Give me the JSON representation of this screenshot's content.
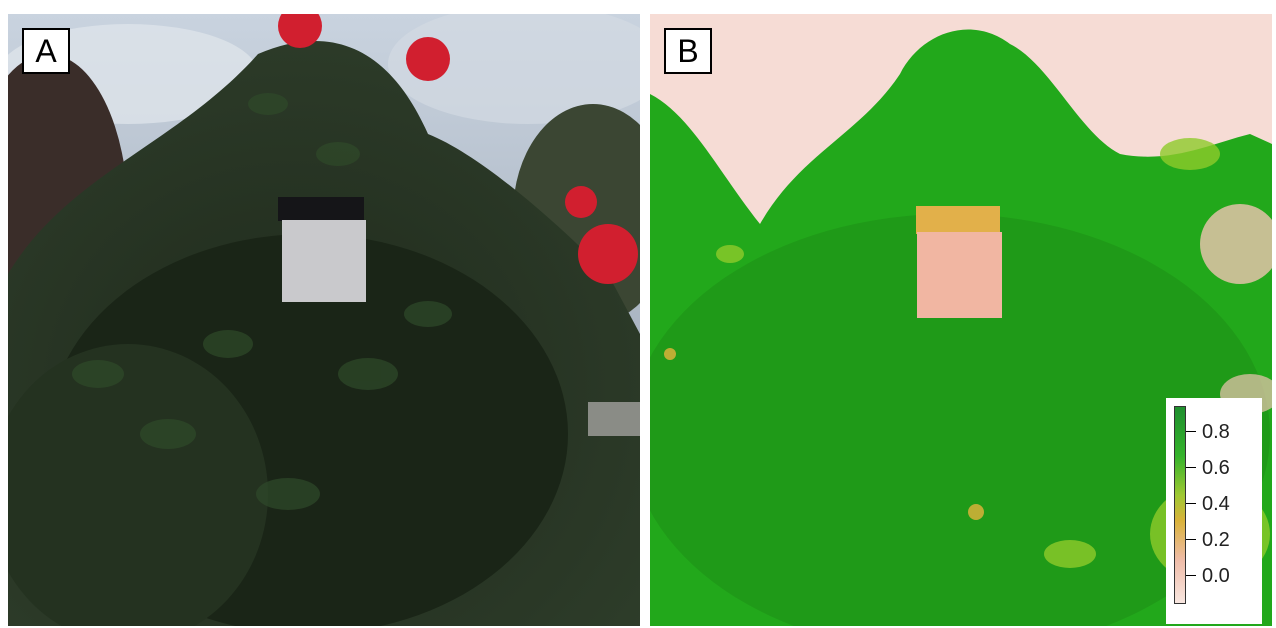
{
  "panels": [
    {
      "label": "A"
    },
    {
      "label": "B"
    }
  ],
  "legend": {
    "ticks": [
      "0.8",
      "0.6",
      "0.4",
      "0.2",
      "0.0"
    ],
    "colors": [
      "#1f8f2e",
      "#35b32c",
      "#9fc832",
      "#d9b23a",
      "#efbca8",
      "#f8e6e0"
    ]
  }
}
